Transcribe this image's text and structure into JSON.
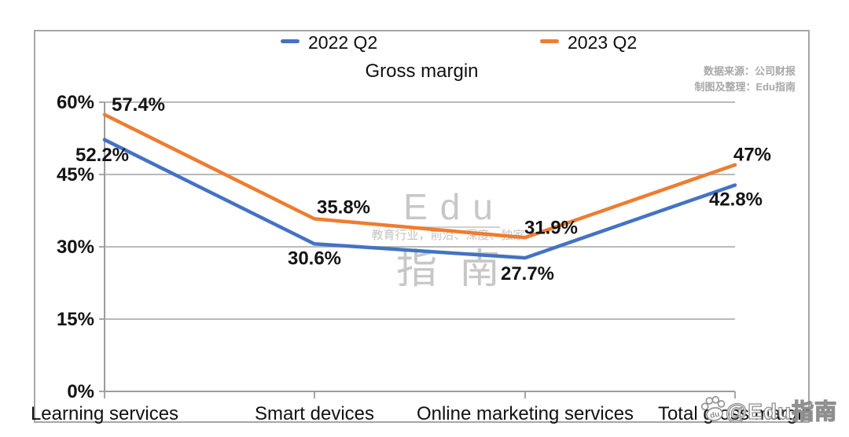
{
  "chart": {
    "title": "Gross margin",
    "legend": [
      {
        "label": "2022 Q2",
        "color": "#4472C4"
      },
      {
        "label": "2023 Q2",
        "color": "#ED7D31"
      }
    ],
    "source_note": [
      "数据来源：公司财报",
      "制图及整理：Edu指南"
    ]
  },
  "watermarks": {
    "center": {
      "brand_top": "Edu",
      "tagline": "教育行业，前沿、深度、独家",
      "brand_bottom": "指南"
    },
    "corner": {
      "handle": "@Edu指南",
      "paw_text": "du"
    }
  },
  "chart_data": {
    "type": "line",
    "title": "Gross margin",
    "categories": [
      "Learning services",
      "Smart devices",
      "Online marketing services",
      "Total gross margin"
    ],
    "series": [
      {
        "name": "2022 Q2",
        "color": "#4472C4",
        "values": [
          52.2,
          30.6,
          27.7,
          42.8
        ],
        "labels": [
          "52.2%",
          "30.6%",
          "27.7%",
          "42.8%"
        ]
      },
      {
        "name": "2023 Q2",
        "color": "#ED7D31",
        "values": [
          57.4,
          35.8,
          31.9,
          47
        ],
        "labels": [
          "57.4%",
          "35.8%",
          "31.9%",
          "47%"
        ]
      }
    ],
    "ylim": [
      0,
      60
    ],
    "yticks": [
      0,
      15,
      30,
      45,
      60
    ],
    "ytick_labels": [
      "0%",
      "15%",
      "30%",
      "45%",
      "60%"
    ],
    "grid": true,
    "legend_position": "top"
  }
}
